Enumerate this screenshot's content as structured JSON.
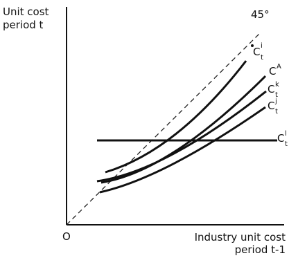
{
  "axes": {
    "y_label_line1": "Unit cost",
    "y_label_line2": "period t",
    "x_label_line1": "Industry unit cost",
    "x_label_line2": "period t-1",
    "origin_label": "O",
    "diagonal_label": "45°"
  },
  "curves": [
    {
      "base": "C",
      "sup": "i",
      "sub": "t"
    },
    {
      "base": "C",
      "sup": "A",
      "sub": ""
    },
    {
      "base": "C",
      "sup": "k",
      "sub": "t"
    },
    {
      "base": "C",
      "sup": "j",
      "sub": "t"
    },
    {
      "base": "C",
      "sup": "l",
      "sub": "t"
    }
  ]
}
